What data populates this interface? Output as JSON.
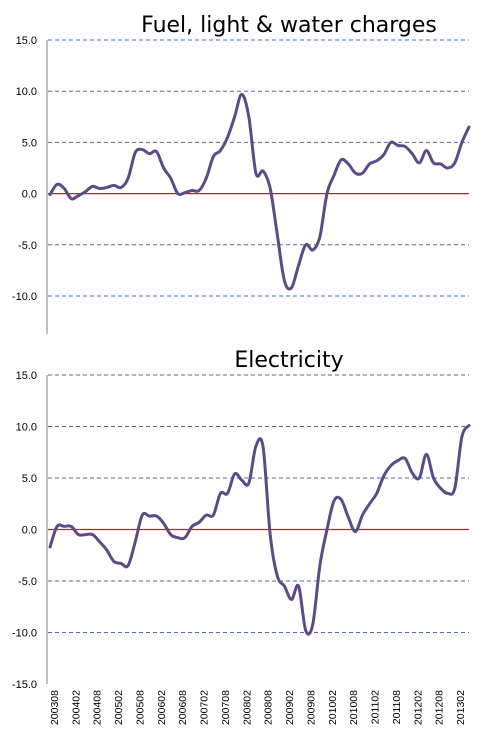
{
  "chart_data": [
    {
      "type": "line",
      "title": "Fuel, light & water charges",
      "ylim": [
        -15,
        15
      ],
      "ytick_labels": [
        "15.0",
        "10.0",
        "5.0",
        "0.0",
        "-5.0",
        "-10.0"
      ],
      "grid": true,
      "line_color": "#5b4b86",
      "x": [
        "200308",
        "200310",
        "200312",
        "200402",
        "200404",
        "200406",
        "200408",
        "200410",
        "200412",
        "200502",
        "200504",
        "200506",
        "200508",
        "200510",
        "200512",
        "200602",
        "200604",
        "200606",
        "200608",
        "200610",
        "200612",
        "200702",
        "200704",
        "200706",
        "200708",
        "200710",
        "200712",
        "200802",
        "200804",
        "200806",
        "200808",
        "200810",
        "200812",
        "200902",
        "200904",
        "200906",
        "200908",
        "200910",
        "200912",
        "201002",
        "201004",
        "201006",
        "201008",
        "201010",
        "201012",
        "201102",
        "201104",
        "201106",
        "201108",
        "201110",
        "201112",
        "201202",
        "201204",
        "201206",
        "201208",
        "201210",
        "201212",
        "201302",
        "201304",
        "201306"
      ],
      "values": [
        -0.1,
        0.9,
        0.5,
        -0.5,
        -0.2,
        0.2,
        0.7,
        0.5,
        0.6,
        0.8,
        0.6,
        1.5,
        4.0,
        4.3,
        3.9,
        4.1,
        2.5,
        1.5,
        0.0,
        0.1,
        0.3,
        0.3,
        1.5,
        3.6,
        4.2,
        5.5,
        7.5,
        9.7,
        7.5,
        2.0,
        2.2,
        0.5,
        -4.0,
        -8.5,
        -9.2,
        -7.0,
        -5.0,
        -5.5,
        -4.2,
        0.0,
        1.8,
        3.3,
        2.9,
        2.0,
        2.0,
        2.9,
        3.2,
        3.8,
        5.0,
        4.7,
        4.6,
        3.9,
        3.0,
        4.2,
        3.0,
        2.9,
        2.5,
        3.0,
        5.0,
        6.5
      ]
    },
    {
      "type": "line",
      "title": "Electricity",
      "ylim": [
        -15,
        15
      ],
      "ytick_labels": [
        "15.0",
        "10.0",
        "5.0",
        "0.0",
        "-5.0",
        "-10.0",
        "-15.0"
      ],
      "grid": true,
      "line_color": "#5b4b86",
      "x": [
        "200308",
        "200310",
        "200312",
        "200402",
        "200404",
        "200406",
        "200408",
        "200410",
        "200412",
        "200502",
        "200504",
        "200506",
        "200508",
        "200510",
        "200512",
        "200602",
        "200604",
        "200606",
        "200608",
        "200610",
        "200612",
        "200702",
        "200704",
        "200706",
        "200708",
        "200710",
        "200712",
        "200802",
        "200804",
        "200806",
        "200808",
        "200810",
        "200812",
        "200902",
        "200904",
        "200906",
        "200908",
        "200910",
        "200912",
        "201002",
        "201004",
        "201006",
        "201008",
        "201010",
        "201012",
        "201102",
        "201104",
        "201106",
        "201108",
        "201110",
        "201112",
        "201202",
        "201204",
        "201206",
        "201208",
        "201210",
        "201212",
        "201302",
        "201304",
        "201306"
      ],
      "values": [
        -1.7,
        0.3,
        0.3,
        0.3,
        -0.5,
        -0.5,
        -0.5,
        -1.2,
        -2.0,
        -3.1,
        -3.3,
        -3.5,
        -1.2,
        1.4,
        1.3,
        1.3,
        0.6,
        -0.5,
        -0.8,
        -0.8,
        0.3,
        0.7,
        1.4,
        1.4,
        3.5,
        3.5,
        5.4,
        4.8,
        4.5,
        8.1,
        8.0,
        -0.5,
        -4.5,
        -5.5,
        -6.8,
        -5.5,
        -9.8,
        -9.2,
        -3.5,
        0.0,
        2.8,
        2.9,
        1.2,
        -0.2,
        1.4,
        2.5,
        3.5,
        5.2,
        6.2,
        6.7,
        6.9,
        5.5,
        5.0,
        7.3,
        5.0,
        4.0,
        3.5,
        4.0,
        9.0,
        10.1
      ]
    }
  ],
  "x_tick_labels": [
    "200308",
    "200402",
    "200408",
    "200502",
    "200508",
    "200602",
    "200608",
    "200702",
    "200708",
    "200802",
    "200808",
    "200902",
    "200908",
    "201002",
    "201008",
    "201102",
    "201108",
    "201202",
    "201208",
    "201302"
  ]
}
